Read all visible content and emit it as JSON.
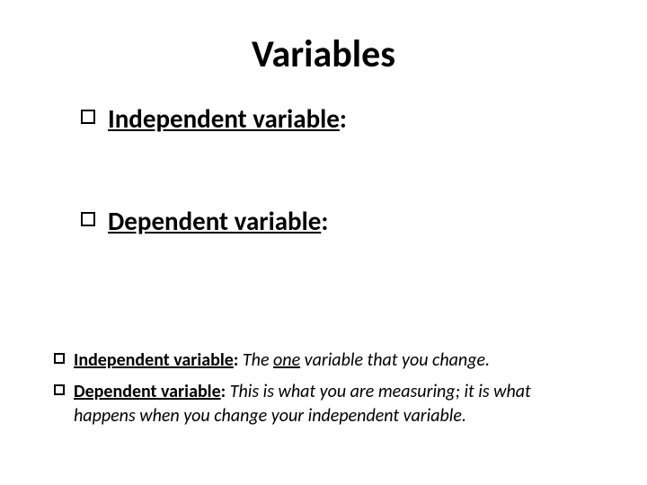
{
  "title": "Variables",
  "main_items": [
    {
      "term": "Independent variable",
      "colon": ":"
    },
    {
      "term": "Dependent variable",
      "colon": ":"
    }
  ],
  "sub_items": [
    {
      "term": "Independent variable",
      "colon": ":",
      "desc_prefix_italic": "The ",
      "desc_underline": "one",
      "desc_suffix": " variable that you change."
    },
    {
      "term": "Dependent variable",
      "colon": ":",
      "desc_prefix_italic": "This is what you are measuring; it is what happens when you change your independent variable.",
      "desc_underline": "",
      "desc_suffix": ""
    }
  ],
  "colors": {
    "background": "#ffffff",
    "text": "#000000",
    "bullet_border": "#000000"
  },
  "typography": {
    "title_fontsize": 42,
    "main_fontsize": 29,
    "sub_fontsize": 20,
    "font_family": "Calibri"
  }
}
